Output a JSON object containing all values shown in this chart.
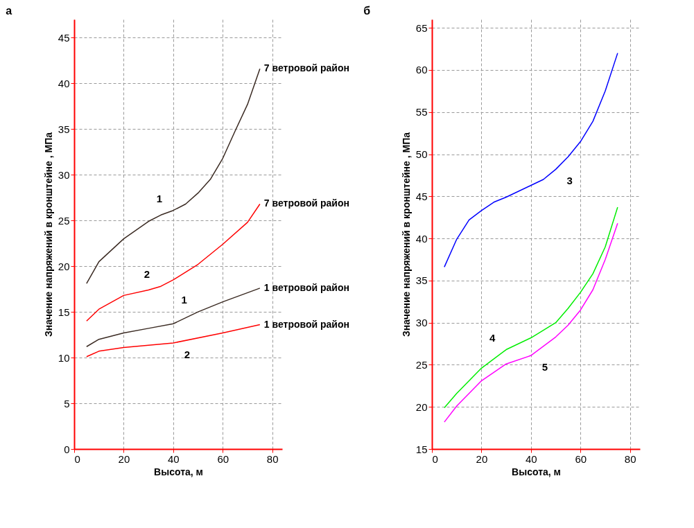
{
  "chart_data": [
    {
      "type": "line",
      "title": "а",
      "xlabel": "Высота, м",
      "ylabel": "Значение напряжений  в кронштейне , МПа",
      "x": [
        5,
        10,
        20,
        30,
        35,
        40,
        45,
        50,
        55,
        60,
        65,
        70,
        75
      ],
      "series": [
        {
          "name": "7 ветровой район",
          "color": "#3a2a22",
          "values": [
            18.1,
            20.5,
            23.0,
            24.9,
            25.6,
            26.1,
            26.8,
            28.0,
            29.5,
            31.8,
            34.8,
            37.7,
            41.6
          ]
        },
        {
          "name": "7 ветровой район",
          "color": "#ff0000",
          "x": [
            5,
            10,
            20,
            30,
            35,
            40,
            50,
            60,
            70,
            75
          ],
          "values": [
            14.0,
            15.3,
            16.8,
            17.4,
            17.8,
            18.5,
            20.2,
            22.4,
            24.8,
            26.8
          ]
        },
        {
          "name": "1 ветровой район",
          "color": "#3a2a22",
          "x": [
            5,
            10,
            20,
            30,
            40,
            50,
            60,
            75
          ],
          "values": [
            11.2,
            12.0,
            12.7,
            13.2,
            13.7,
            15.0,
            16.1,
            17.6
          ]
        },
        {
          "name": "1 ветровой район",
          "color": "#ff0000",
          "x": [
            5,
            10,
            20,
            40,
            60,
            75
          ],
          "values": [
            10.1,
            10.7,
            11.1,
            11.6,
            12.7,
            13.6
          ]
        }
      ],
      "annotations": [
        {
          "text": "1",
          "x": 40,
          "y": 26.1
        },
        {
          "text": "2",
          "x": 35,
          "y": 17.8
        },
        {
          "text": "1",
          "x": 50,
          "y": 15.0
        },
        {
          "text": "2",
          "x": 40,
          "y": 11.6
        }
      ],
      "xlim": [
        0,
        84
      ],
      "ylim": [
        0,
        47
      ],
      "xticks": [
        0,
        20,
        40,
        60,
        80
      ],
      "yticks": [
        0,
        5,
        10,
        15,
        20,
        25,
        30,
        35,
        40,
        45
      ],
      "grid": true
    },
    {
      "type": "line",
      "title": "б",
      "xlabel": "Высота, м",
      "ylabel": "Значение напряжений  в кронштейне , МПа",
      "x": [
        5,
        10,
        15,
        20,
        25,
        30,
        40,
        45,
        50,
        55,
        60,
        65,
        70,
        75
      ],
      "series": [
        {
          "color": "#0000ff",
          "values": [
            36.6,
            39.9,
            42.2,
            43.3,
            44.3,
            44.9,
            46.3,
            47.0,
            48.2,
            49.7,
            51.5,
            53.9,
            57.5,
            62.0
          ]
        },
        {
          "color": "#00ee00",
          "x": [
            5,
            10,
            20,
            30,
            40,
            50,
            55,
            60,
            65,
            70,
            75
          ],
          "values": [
            19.9,
            21.6,
            24.6,
            26.8,
            28.2,
            30.0,
            31.7,
            33.6,
            35.8,
            39.0,
            43.7
          ]
        },
        {
          "color": "#ff00ff",
          "x": [
            5,
            10,
            20,
            30,
            40,
            50,
            55,
            60,
            65,
            70,
            75
          ],
          "values": [
            18.2,
            20.1,
            23.1,
            25.1,
            26.1,
            28.3,
            29.7,
            31.5,
            33.9,
            37.5,
            41.8
          ]
        }
      ],
      "annotations": [
        {
          "text": "3",
          "x": 50,
          "y": 48.2
        },
        {
          "text": "4",
          "x": 30,
          "y": 26.8
        },
        {
          "text": "5",
          "x": 40,
          "y": 26.1
        }
      ],
      "xlim": [
        0,
        84
      ],
      "ylim": [
        15,
        66
      ],
      "xticks": [
        0,
        20,
        40,
        60,
        80
      ],
      "yticks": [
        15,
        20,
        25,
        30,
        35,
        40,
        45,
        50,
        55,
        60,
        65
      ],
      "grid": true
    }
  ]
}
